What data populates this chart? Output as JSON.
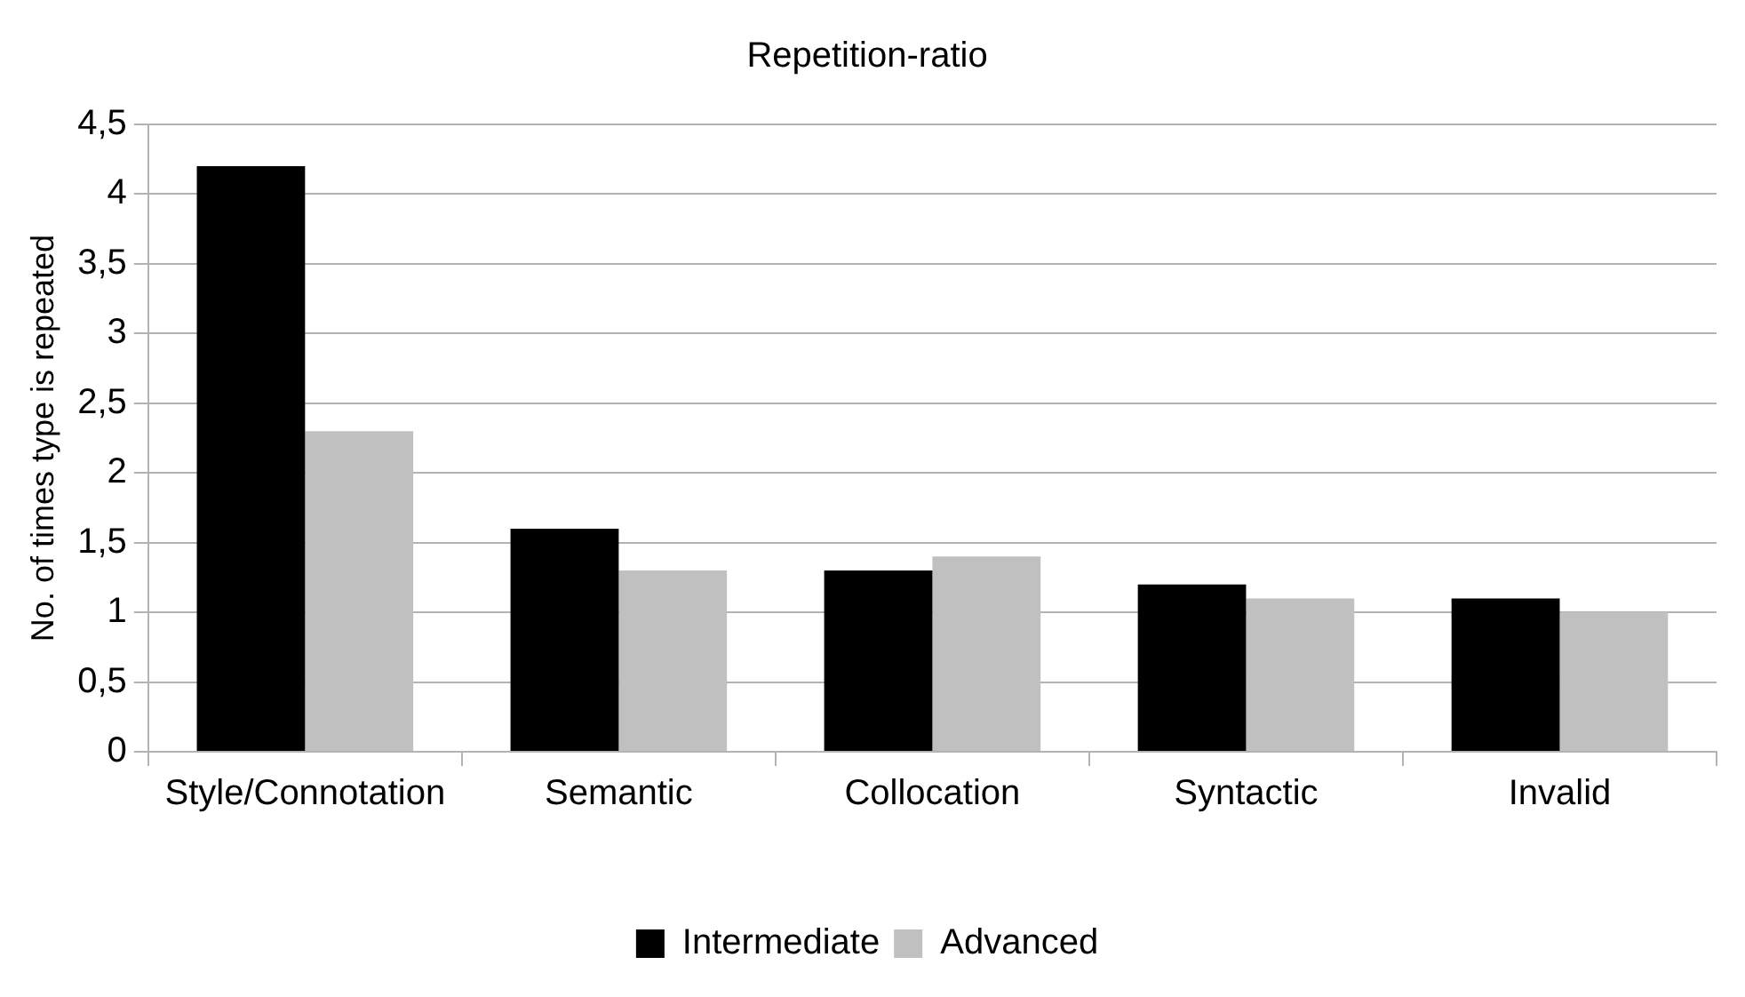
{
  "chart_data": {
    "type": "bar",
    "title": "Repetition-ratio",
    "ylabel": "No. of times type is repeated",
    "categories": [
      "Style/Connotation",
      "Semantic",
      "Collocation",
      "Syntactic",
      "Invalid"
    ],
    "series": [
      {
        "name": "Intermediate",
        "color": "#000000",
        "values": [
          4.2,
          1.6,
          1.3,
          1.2,
          1.1
        ]
      },
      {
        "name": "Advanced",
        "color": "#c0c0c0",
        "values": [
          2.3,
          1.3,
          1.4,
          1.1,
          1.0
        ]
      }
    ],
    "ylim": [
      0,
      4.5
    ],
    "yticks": [
      0,
      {
        "value": 0.5,
        "label": "0,5"
      },
      1,
      {
        "value": 1.5,
        "label": "1,5"
      },
      2,
      {
        "value": 2.5,
        "label": "2,5"
      },
      3,
      {
        "value": 3.5,
        "label": "3,5"
      },
      4,
      {
        "value": 4.5,
        "label": "4,5"
      }
    ],
    "grid": "y",
    "legend": "bottom"
  }
}
